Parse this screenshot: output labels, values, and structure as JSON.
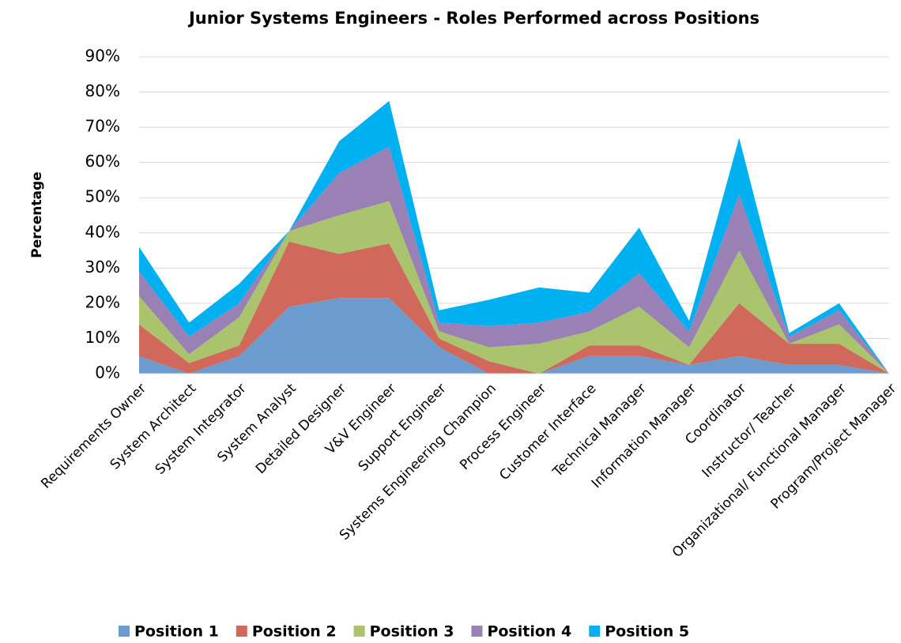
{
  "chart_data": {
    "type": "stacked_area",
    "title": "Junior Systems Engineers - Roles Performed across Positions",
    "y_label": "Percentage",
    "categories": [
      "Requirements Owner",
      "System Architect",
      "System Integrator",
      "System Analyst",
      "Detailed Designer",
      "V&V Engineer",
      "Support Engineer",
      "Systems Engineering Champion",
      "Process Engineer",
      "Customer Interface",
      "Technical Manager",
      "Information Manager",
      "Coordinator",
      "Instructor/ Teacher",
      "Organizational/ Functional Manager",
      "Program/Project Manager"
    ],
    "series": [
      {
        "name": "Position 1",
        "color": "#6b9bcf",
        "values": [
          5,
          0,
          5,
          19,
          21.5,
          21.5,
          7.5,
          0,
          0,
          5,
          5,
          2.5,
          5,
          2.5,
          2.5,
          0
        ]
      },
      {
        "name": "Position 2",
        "color": "#d0685c",
        "values": [
          9,
          3,
          3,
          18.5,
          12.5,
          15.5,
          2.5,
          3.5,
          0,
          3,
          3,
          0,
          15,
          6,
          6,
          0
        ]
      },
      {
        "name": "Position 3",
        "color": "#a9c46c",
        "values": [
          8,
          2.5,
          8,
          3,
          11,
          12,
          2,
          4,
          8.5,
          4,
          11,
          5,
          15,
          0,
          5.5,
          0
        ]
      },
      {
        "name": "Position 4",
        "color": "#9981b5",
        "values": [
          7,
          5,
          4,
          0,
          12,
          15.5,
          2.5,
          6,
          6,
          5.5,
          9.5,
          4.5,
          16,
          2,
          4,
          0
        ]
      },
      {
        "name": "Position 5",
        "color": "#00b0f0",
        "values": [
          7,
          4,
          5.5,
          0,
          9,
          13,
          3.5,
          7.5,
          10,
          5.5,
          13,
          3,
          16,
          1,
          2,
          0
        ]
      }
    ],
    "ylim": [
      0,
      90
    ],
    "yticks": [
      {
        "value": 0,
        "label": "0%"
      },
      {
        "value": 10,
        "label": "10%"
      },
      {
        "value": 20,
        "label": "20%"
      },
      {
        "value": 30,
        "label": "30%"
      },
      {
        "value": 40,
        "label": "40%"
      },
      {
        "value": 50,
        "label": "50%"
      },
      {
        "value": 60,
        "label": "60%"
      },
      {
        "value": 70,
        "label": "70%"
      },
      {
        "value": 80,
        "label": "80%"
      },
      {
        "value": 90,
        "label": "90%"
      }
    ],
    "grid": true,
    "legend": "bottom"
  }
}
